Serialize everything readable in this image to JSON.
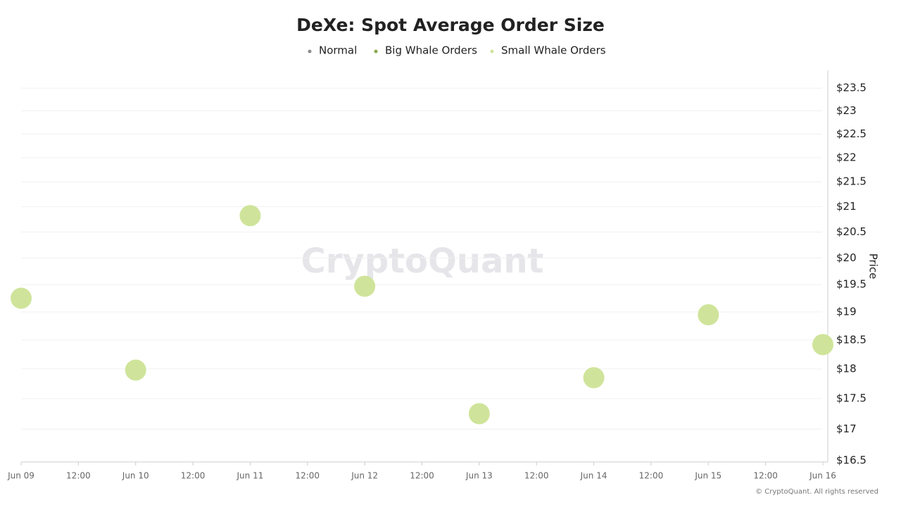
{
  "chart_data": {
    "type": "scatter",
    "title": "DeXe: Spot Average Order Size",
    "x": [
      "Jun 09",
      "Jun 10",
      "Jun 11",
      "Jun 12",
      "Jun 13",
      "Jun 14",
      "Jun 15",
      "Jun 16"
    ],
    "x_mid_label": "12:00",
    "series": [
      {
        "name": "Normal",
        "color": "#8c8c8c",
        "values": [
          null,
          null,
          null,
          null,
          null,
          null,
          null,
          null
        ]
      },
      {
        "name": "Big Whale Orders",
        "color": "#8aa84a",
        "values": [
          null,
          null,
          null,
          null,
          null,
          null,
          null,
          null
        ]
      },
      {
        "name": "Small Whale Orders",
        "color": "#cfe49a",
        "values": [
          19.25,
          17.98,
          20.82,
          19.47,
          17.25,
          17.85,
          18.95,
          18.42
        ]
      }
    ],
    "ylabel": "Price",
    "log_scale": true,
    "ylim": [
      16.5,
      23.9
    ],
    "yticks": [
      {
        "value": 16.5,
        "label": "$16.5"
      },
      {
        "value": 17,
        "label": "$17"
      },
      {
        "value": 17.5,
        "label": "$17.5"
      },
      {
        "value": 18,
        "label": "$18"
      },
      {
        "value": 18.5,
        "label": "$18.5"
      },
      {
        "value": 19,
        "label": "$19"
      },
      {
        "value": 19.5,
        "label": "$19.5"
      },
      {
        "value": 20,
        "label": "$20"
      },
      {
        "value": 20.5,
        "label": "$20.5"
      },
      {
        "value": 21,
        "label": "$21"
      },
      {
        "value": 21.5,
        "label": "$21.5"
      },
      {
        "value": 22,
        "label": "$22"
      },
      {
        "value": 22.5,
        "label": "$22.5"
      },
      {
        "value": 23,
        "label": "$23"
      },
      {
        "value": 23.5,
        "label": "$23.5"
      }
    ],
    "grid": true,
    "watermark": "CryptoQuant",
    "credit": "© CryptoQuant. All rights reserved"
  }
}
